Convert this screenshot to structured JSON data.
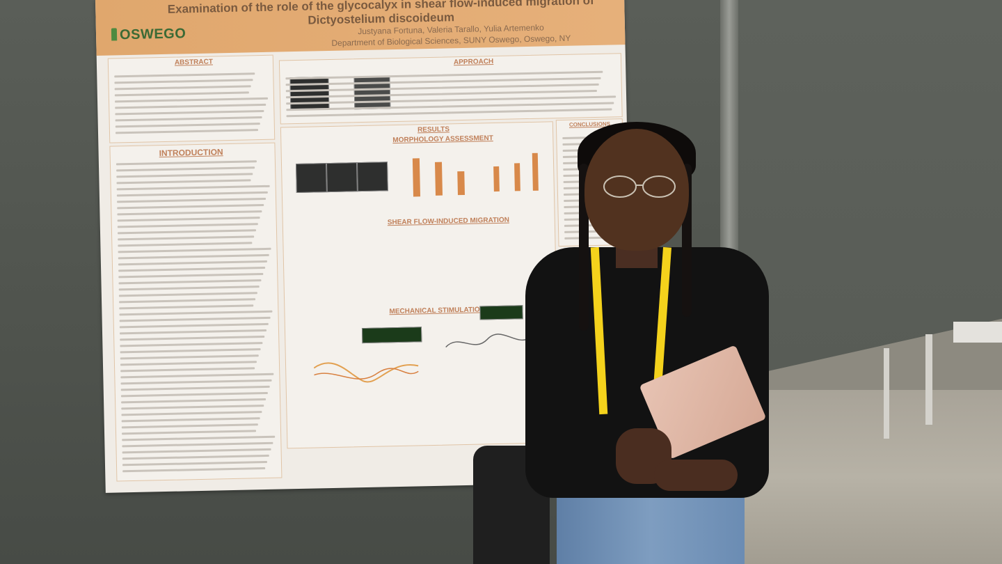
{
  "poster": {
    "title": "Examination of the role of the glycocalyx in shear flow-induced migration of Dictyostelium discoideum",
    "authors": "Justyana Fortuna, Valeria Tarallo, Yulia Artemenko",
    "affiliation": "Department of Biological Sciences, SUNY Oswego, Oswego, NY",
    "logo_text": "OSWEGO",
    "sections": {
      "abstract": "ABSTRACT",
      "introduction": "INTRODUCTION",
      "approach": "APPROACH",
      "results": "RESULTS",
      "morphology": "MORPHOLOGY ASSESSMENT",
      "shear_flow": "SHEAR FLOW-INDUCED MIGRATION",
      "mechanical": "MECHANICAL STIMULATION ASSAY",
      "conclusions": "CONCLUSIONS"
    },
    "colors": {
      "header": "#e3aa72",
      "accent": "#c0805a",
      "bars": "#d8894a"
    }
  },
  "person": {
    "lanyard_color": "#f4d21c",
    "tablet_color": "#e2b9a8"
  }
}
